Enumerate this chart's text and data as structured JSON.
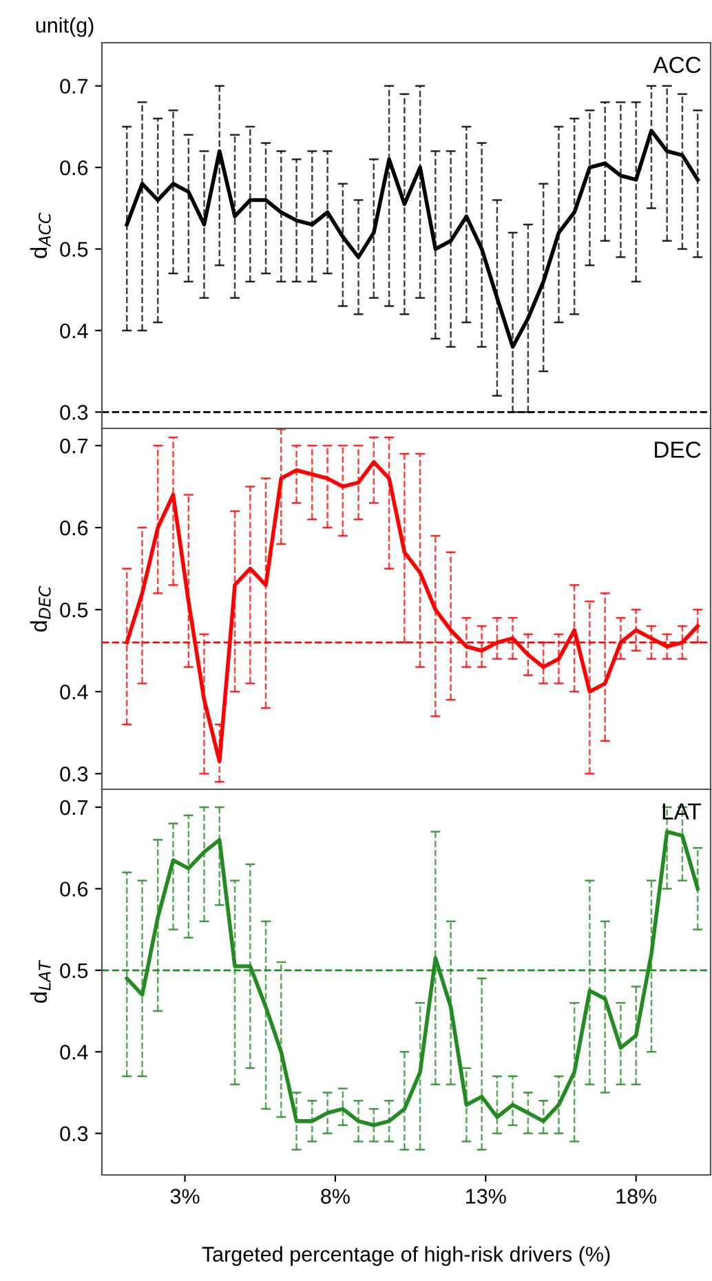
{
  "chart_data": [
    {
      "type": "line",
      "title": "unit(g)",
      "ylabel": "d$_{ACC}$",
      "xlim": [
        0.24,
        20.48
      ],
      "ylim": [
        0.28,
        0.753
      ],
      "yticks": [
        0.3,
        0.4,
        0.5,
        0.6,
        0.7
      ],
      "tick_labels": "y",
      "grid": false,
      "marker": "none",
      "line_style": "solid",
      "ref_lines": [
        {
          "axis": "y",
          "value": 0.3,
          "color": "#000000",
          "line_style": "dashed"
        }
      ],
      "series": [
        {
          "name": "ACC",
          "color": "#000000",
          "x": [
            1.07,
            1.58,
            2.1,
            2.61,
            3.12,
            3.64,
            4.15,
            4.66,
            5.17,
            5.69,
            6.2,
            6.71,
            7.23,
            7.74,
            8.25,
            8.77,
            9.28,
            9.79,
            10.3,
            10.82,
            11.33,
            11.84,
            12.36,
            12.87,
            13.38,
            13.9,
            14.41,
            14.92,
            15.43,
            15.95,
            16.46,
            16.97,
            17.49,
            18.0,
            18.51,
            19.03,
            19.54,
            20.05
          ],
          "values": [
            0.53,
            0.58,
            0.56,
            0.58,
            0.57,
            0.53,
            0.62,
            0.54,
            0.56,
            0.56,
            0.545,
            0.535,
            0.53,
            0.545,
            0.515,
            0.49,
            0.52,
            0.61,
            0.555,
            0.6,
            0.5,
            0.51,
            0.54,
            0.5,
            0.44,
            0.38,
            0.415,
            0.46,
            0.52,
            0.545,
            0.6,
            0.605,
            0.59,
            0.585,
            0.645,
            0.62,
            0.615,
            0.585
          ],
          "errors": [
            [
              0.4,
              0.65
            ],
            [
              0.4,
              0.68
            ],
            [
              0.41,
              0.66
            ],
            [
              0.47,
              0.67
            ],
            [
              0.46,
              0.64
            ],
            [
              0.44,
              0.62
            ],
            [
              0.48,
              0.7
            ],
            [
              0.44,
              0.64
            ],
            [
              0.46,
              0.65
            ],
            [
              0.47,
              0.63
            ],
            [
              0.46,
              0.62
            ],
            [
              0.46,
              0.61
            ],
            [
              0.46,
              0.62
            ],
            [
              0.47,
              0.62
            ],
            [
              0.43,
              0.58
            ],
            [
              0.42,
              0.56
            ],
            [
              0.44,
              0.61
            ],
            [
              0.43,
              0.7
            ],
            [
              0.42,
              0.69
            ],
            [
              0.44,
              0.7
            ],
            [
              0.39,
              0.62
            ],
            [
              0.38,
              0.62
            ],
            [
              0.41,
              0.65
            ],
            [
              0.38,
              0.63
            ],
            [
              0.32,
              0.56
            ],
            [
              0.3,
              0.52
            ],
            [
              0.3,
              0.53
            ],
            [
              0.35,
              0.58
            ],
            [
              0.41,
              0.65
            ],
            [
              0.42,
              0.66
            ],
            [
              0.48,
              0.67
            ],
            [
              0.51,
              0.68
            ],
            [
              0.49,
              0.68
            ],
            [
              0.46,
              0.68
            ],
            [
              0.55,
              0.7
            ],
            [
              0.51,
              0.7
            ],
            [
              0.5,
              0.69
            ],
            [
              0.49,
              0.67
            ]
          ]
        }
      ]
    },
    {
      "type": "line",
      "ylabel": "d$_{DEC}$",
      "xlim": [
        0.24,
        20.48
      ],
      "ylim": [
        0.281,
        0.721
      ],
      "yticks": [
        0.3,
        0.4,
        0.5,
        0.6,
        0.7
      ],
      "tick_labels": "y",
      "grid": false,
      "marker": "none",
      "line_style": "solid",
      "ref_lines": [
        {
          "axis": "y",
          "value": 0.46,
          "color": "#ff0000",
          "line_style": "dashed"
        }
      ],
      "series": [
        {
          "name": "DEC",
          "color": "#ff0000",
          "x": [
            1.07,
            1.58,
            2.1,
            2.61,
            3.12,
            3.64,
            4.15,
            4.66,
            5.17,
            5.69,
            6.2,
            6.71,
            7.23,
            7.74,
            8.25,
            8.77,
            9.28,
            9.79,
            10.3,
            10.82,
            11.33,
            11.84,
            12.36,
            12.87,
            13.38,
            13.9,
            14.41,
            14.92,
            15.43,
            15.95,
            16.46,
            16.97,
            17.49,
            18.0,
            18.51,
            19.03,
            19.54,
            20.05
          ],
          "values": [
            0.46,
            0.52,
            0.6,
            0.64,
            0.51,
            0.39,
            0.315,
            0.53,
            0.55,
            0.53,
            0.66,
            0.67,
            0.665,
            0.66,
            0.65,
            0.655,
            0.68,
            0.66,
            0.57,
            0.545,
            0.5,
            0.475,
            0.455,
            0.45,
            0.46,
            0.465,
            0.445,
            0.43,
            0.44,
            0.475,
            0.4,
            0.41,
            0.46,
            0.475,
            0.465,
            0.455,
            0.46,
            0.48
          ],
          "errors": [
            [
              0.36,
              0.55
            ],
            [
              0.41,
              0.6
            ],
            [
              0.52,
              0.7
            ],
            [
              0.53,
              0.71
            ],
            [
              0.43,
              0.64
            ],
            [
              0.3,
              0.47
            ],
            [
              0.29,
              0.36
            ],
            [
              0.4,
              0.62
            ],
            [
              0.41,
              0.65
            ],
            [
              0.38,
              0.66
            ],
            [
              0.58,
              0.72
            ],
            [
              0.63,
              0.7
            ],
            [
              0.61,
              0.7
            ],
            [
              0.6,
              0.7
            ],
            [
              0.59,
              0.7
            ],
            [
              0.61,
              0.7
            ],
            [
              0.63,
              0.71
            ],
            [
              0.55,
              0.71
            ],
            [
              0.46,
              0.69
            ],
            [
              0.43,
              0.69
            ],
            [
              0.37,
              0.59
            ],
            [
              0.39,
              0.57
            ],
            [
              0.43,
              0.49
            ],
            [
              0.43,
              0.48
            ],
            [
              0.44,
              0.49
            ],
            [
              0.44,
              0.49
            ],
            [
              0.42,
              0.47
            ],
            [
              0.41,
              0.46
            ],
            [
              0.41,
              0.47
            ],
            [
              0.4,
              0.53
            ],
            [
              0.3,
              0.51
            ],
            [
              0.34,
              0.52
            ],
            [
              0.44,
              0.49
            ],
            [
              0.45,
              0.5
            ],
            [
              0.44,
              0.48
            ],
            [
              0.44,
              0.47
            ],
            [
              0.44,
              0.48
            ],
            [
              0.46,
              0.5
            ]
          ]
        }
      ]
    },
    {
      "type": "line",
      "ylabel": "d$_{LAT}$",
      "xlabel": "Targeted percentage of high-risk drivers (%)",
      "xlim": [
        0.24,
        20.48
      ],
      "ylim": [
        0.249,
        0.722
      ],
      "xticks": [
        {
          "value": 3,
          "label": "3%"
        },
        {
          "value": 8,
          "label": "8%"
        },
        {
          "value": 13,
          "label": "13%"
        },
        {
          "value": 18,
          "label": "18%"
        }
      ],
      "yticks": [
        0.3,
        0.4,
        0.5,
        0.6,
        0.7
      ],
      "grid": false,
      "marker": "none",
      "line_style": "solid",
      "ref_lines": [
        {
          "axis": "y",
          "value": 0.5,
          "color": "#228b22",
          "line_style": "dashed"
        }
      ],
      "series": [
        {
          "name": "LAT",
          "color": "#228b22",
          "x": [
            1.07,
            1.58,
            2.1,
            2.61,
            3.12,
            3.64,
            4.15,
            4.66,
            5.17,
            5.69,
            6.2,
            6.71,
            7.23,
            7.74,
            8.25,
            8.77,
            9.28,
            9.79,
            10.3,
            10.82,
            11.33,
            11.84,
            12.36,
            12.87,
            13.38,
            13.9,
            14.41,
            14.92,
            15.43,
            15.95,
            16.46,
            16.97,
            17.49,
            18.0,
            18.51,
            19.03,
            19.54,
            20.05
          ],
          "values": [
            0.49,
            0.47,
            0.565,
            0.635,
            0.625,
            0.645,
            0.66,
            0.505,
            0.505,
            0.455,
            0.4,
            0.315,
            0.315,
            0.325,
            0.33,
            0.315,
            0.31,
            0.315,
            0.33,
            0.375,
            0.515,
            0.455,
            0.335,
            0.345,
            0.32,
            0.335,
            0.325,
            0.315,
            0.335,
            0.375,
            0.475,
            0.465,
            0.405,
            0.42,
            0.52,
            0.67,
            0.665,
            0.6
          ],
          "errors": [
            [
              0.37,
              0.62
            ],
            [
              0.37,
              0.61
            ],
            [
              0.45,
              0.66
            ],
            [
              0.55,
              0.68
            ],
            [
              0.54,
              0.69
            ],
            [
              0.56,
              0.7
            ],
            [
              0.58,
              0.7
            ],
            [
              0.36,
              0.61
            ],
            [
              0.38,
              0.63
            ],
            [
              0.33,
              0.56
            ],
            [
              0.32,
              0.51
            ],
            [
              0.28,
              0.35
            ],
            [
              0.29,
              0.34
            ],
            [
              0.3,
              0.35
            ],
            [
              0.31,
              0.355
            ],
            [
              0.29,
              0.34
            ],
            [
              0.29,
              0.33
            ],
            [
              0.29,
              0.34
            ],
            [
              0.28,
              0.4
            ],
            [
              0.28,
              0.46
            ],
            [
              0.36,
              0.67
            ],
            [
              0.36,
              0.56
            ],
            [
              0.29,
              0.38
            ],
            [
              0.28,
              0.49
            ],
            [
              0.3,
              0.37
            ],
            [
              0.31,
              0.37
            ],
            [
              0.3,
              0.35
            ],
            [
              0.3,
              0.34
            ],
            [
              0.3,
              0.37
            ],
            [
              0.29,
              0.46
            ],
            [
              0.36,
              0.61
            ],
            [
              0.35,
              0.56
            ],
            [
              0.36,
              0.46
            ],
            [
              0.36,
              0.48
            ],
            [
              0.4,
              0.61
            ],
            [
              0.6,
              0.7
            ],
            [
              0.61,
              0.7
            ],
            [
              0.55,
              0.65
            ]
          ]
        }
      ]
    }
  ]
}
